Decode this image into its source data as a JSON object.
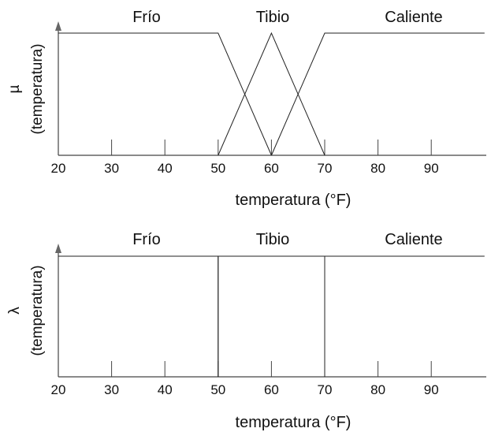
{
  "chart_data": [
    {
      "type": "line",
      "ylabel": "µ",
      "ylabel_sub": "(temperatura)",
      "xlabel": "temperatura (°F)",
      "xticks": [
        20,
        30,
        40,
        50,
        60,
        70,
        80,
        90
      ],
      "xlim": [
        20,
        100
      ],
      "ylim": [
        0,
        1
      ],
      "grid": false,
      "series": [
        {
          "name": "Frío",
          "x": [
            20,
            50,
            60
          ],
          "y": [
            1,
            1,
            0
          ]
        },
        {
          "name": "Tibio",
          "x": [
            50,
            60,
            70
          ],
          "y": [
            0,
            1,
            0
          ]
        },
        {
          "name": "Caliente",
          "x": [
            60,
            70,
            100
          ],
          "y": [
            0,
            1,
            1
          ]
        }
      ],
      "set_labels": [
        {
          "text": "Frío",
          "x": 36
        },
        {
          "text": "Tibio",
          "x": 60
        },
        {
          "text": "Caliente",
          "x": 86
        }
      ]
    },
    {
      "type": "line",
      "ylabel": "λ",
      "ylabel_sub": "(temperatura)",
      "xlabel": "temperatura (°F)",
      "xticks": [
        20,
        30,
        40,
        50,
        60,
        70,
        80,
        90
      ],
      "xlim": [
        20,
        100
      ],
      "ylim": [
        0,
        1
      ],
      "grid": false,
      "series": [
        {
          "name": "Frío",
          "x": [
            20,
            50,
            50
          ],
          "y": [
            1,
            1,
            0
          ]
        },
        {
          "name": "Tibio",
          "x": [
            50,
            50,
            70,
            70
          ],
          "y": [
            0,
            1,
            1,
            0
          ]
        },
        {
          "name": "Caliente",
          "x": [
            70,
            70,
            100
          ],
          "y": [
            0,
            1,
            1
          ]
        }
      ],
      "set_labels": [
        {
          "text": "Frío",
          "x": 36
        },
        {
          "text": "Tibio",
          "x": 60
        },
        {
          "text": "Caliente",
          "x": 86
        }
      ]
    }
  ]
}
